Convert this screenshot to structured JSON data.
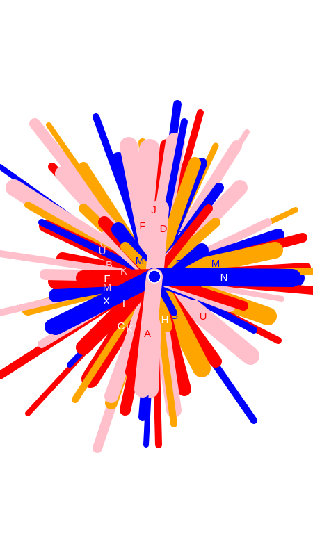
{
  "palette": {
    "blue": "#0000ff",
    "red": "#ff0000",
    "orange": "#ffa500",
    "pink": "#ffc0cb",
    "white": "#ffffff"
  },
  "letters": [
    {
      "char": "J",
      "color": "red"
    },
    {
      "char": "F",
      "color": "red"
    },
    {
      "char": "D",
      "color": "red"
    },
    {
      "char": "F",
      "color": "blue"
    },
    {
      "char": "C",
      "color": "pink"
    },
    {
      "char": "U",
      "color": "pink"
    },
    {
      "char": "M",
      "color": "blue"
    },
    {
      "char": "R",
      "color": "blue"
    },
    {
      "char": "M",
      "color": "blue"
    },
    {
      "char": "B",
      "color": "pink"
    },
    {
      "char": "K",
      "color": "pink"
    },
    {
      "char": "F",
      "color": "white"
    },
    {
      "char": "N",
      "color": "white"
    },
    {
      "char": "M",
      "color": "pink"
    },
    {
      "char": "X",
      "color": "white"
    },
    {
      "char": "I",
      "color": "white"
    },
    {
      "char": "H",
      "color": "white"
    },
    {
      "char": "S",
      "color": "blue"
    },
    {
      "char": "U",
      "color": "red"
    },
    {
      "char": "C",
      "color": "white"
    },
    {
      "char": "K",
      "color": "white"
    },
    {
      "char": "A",
      "color": "red"
    }
  ]
}
